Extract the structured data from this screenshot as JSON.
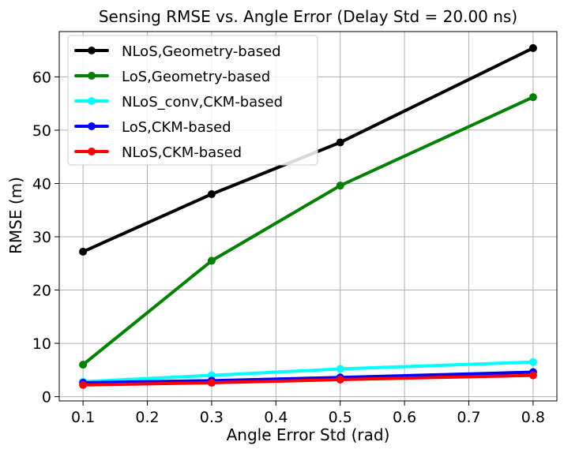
{
  "chart_data": {
    "type": "line",
    "title": "Sensing RMSE vs. Angle Error (Delay Std = 20.00 ns)",
    "xlabel": "Angle Error Std (rad)",
    "ylabel": "RMSE (m)",
    "xlim": [
      0.063,
      0.837
    ],
    "ylim": [
      -0.8,
      68.5
    ],
    "xticks": [
      0.1,
      0.2,
      0.3,
      0.4,
      0.5,
      0.6,
      0.7,
      0.8
    ],
    "xtick_labels": [
      "0.1",
      "0.2",
      "0.3",
      "0.4",
      "0.5",
      "0.6",
      "0.7",
      "0.8"
    ],
    "yticks": [
      0,
      10,
      20,
      30,
      40,
      50,
      60
    ],
    "ytick_labels": [
      "0",
      "10",
      "20",
      "30",
      "40",
      "50",
      "60"
    ],
    "grid": true,
    "legend_position": "top-left",
    "x": [
      0.1,
      0.3,
      0.5,
      0.8
    ],
    "series": [
      {
        "name": "NLoS,Geometry-based",
        "color": "#000000",
        "values": [
          27.2,
          38.0,
          47.7,
          65.4
        ]
      },
      {
        "name": "LoS,Geometry-based",
        "color": "#008000",
        "values": [
          6.0,
          25.5,
          39.6,
          56.2
        ]
      },
      {
        "name": "NLoS_conv,CKM-based",
        "color": "#00ffff",
        "values": [
          2.8,
          4.0,
          5.2,
          6.5
        ]
      },
      {
        "name": "LoS,CKM-based",
        "color": "#0000ff",
        "values": [
          2.6,
          3.0,
          3.6,
          4.6
        ]
      },
      {
        "name": "NLoS,CKM-based",
        "color": "#ff0000",
        "values": [
          2.2,
          2.6,
          3.2,
          4.0
        ]
      }
    ]
  }
}
